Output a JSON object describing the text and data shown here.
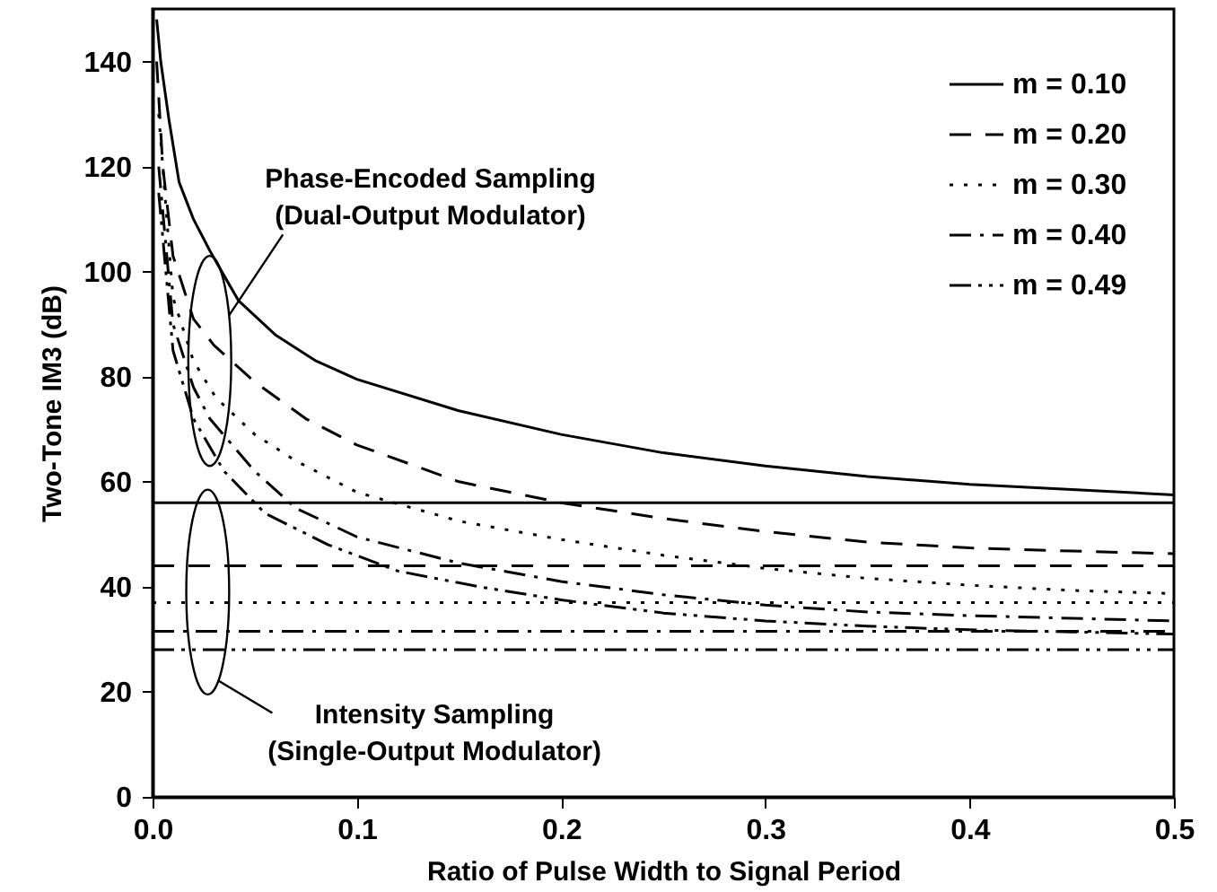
{
  "chart_data": {
    "type": "line",
    "xlabel": "Ratio of Pulse Width to Signal Period",
    "ylabel": "Two-Tone IM3 (dB)",
    "xlim": [
      0,
      0.5
    ],
    "xticks": [
      {
        "value": 0,
        "label": "0.0"
      },
      0.1,
      0.2,
      0.3,
      0.4,
      0.5
    ],
    "ylim": [
      0,
      150
    ],
    "yticks": [
      0,
      20,
      40,
      60,
      80,
      100,
      120,
      140
    ],
    "grid": false,
    "legend": "top right",
    "marker": "none",
    "annotations": [
      "Phase-Encoded Sampling\n(Dual-Output Modulator)",
      "Intensity Sampling\n(Single-Output Modulator)"
    ],
    "series": [
      {
        "name": "m = 0.10",
        "color": "#000000",
        "line_style": "solid",
        "x": [
          0.002,
          0.004,
          0.008,
          0.013,
          0.02,
          0.028,
          0.042,
          0.06,
          0.08,
          0.1,
          0.15,
          0.2,
          0.25,
          0.3,
          0.35,
          0.4,
          0.45,
          0.5
        ],
        "values": [
          148,
          140,
          129,
          117,
          110,
          104,
          94.5,
          88,
          83,
          79.5,
          73.5,
          69,
          65.5,
          63,
          61,
          59.5,
          58.5,
          57.5
        ]
      },
      {
        "name": "m = 0.20",
        "color": "#000000",
        "line_style": "dashed",
        "x": [
          0.002,
          0.005,
          0.01,
          0.02,
          0.03,
          0.05,
          0.075,
          0.1,
          0.15,
          0.2,
          0.25,
          0.3,
          0.35,
          0.4,
          0.45,
          0.5
        ],
        "values": [
          140,
          120,
          103,
          91,
          86,
          79,
          72,
          67,
          60,
          56,
          53,
          50.5,
          48.5,
          47.4,
          46.8,
          46.3
        ]
      },
      {
        "name": "m = 0.30",
        "color": "#000000",
        "line_style": "dotted",
        "x": [
          0.003,
          0.01,
          0.02,
          0.031,
          0.05,
          0.07,
          0.1,
          0.15,
          0.2,
          0.25,
          0.3,
          0.35,
          0.4,
          0.45,
          0.5
        ],
        "values": [
          130,
          95,
          83,
          76,
          69,
          64,
          58,
          52.5,
          49,
          46,
          43.5,
          41.6,
          40.3,
          39.3,
          38.7
        ]
      },
      {
        "name": "m = 0.40",
        "color": "#000000",
        "line_style": "dashdot",
        "x": [
          0.003,
          0.01,
          0.02,
          0.028,
          0.05,
          0.07,
          0.1,
          0.15,
          0.2,
          0.25,
          0.3,
          0.35,
          0.4,
          0.45,
          0.5
        ],
        "values": [
          120,
          90,
          78,
          72,
          62,
          55,
          49.5,
          44.5,
          41,
          38.5,
          36.5,
          35.2,
          34.5,
          34,
          33.5
        ]
      },
      {
        "name": "m = 0.49",
        "color": "#000000",
        "line_style": "dashdotdot",
        "x": [
          0.003,
          0.01,
          0.02,
          0.035,
          0.055,
          0.086,
          0.12,
          0.16,
          0.2,
          0.25,
          0.3,
          0.35,
          0.4,
          0.45,
          0.5
        ],
        "values": [
          115,
          85,
          72,
          62,
          54,
          48,
          43,
          40,
          37.5,
          35,
          33.5,
          32.5,
          31.8,
          31.4,
          31
        ]
      },
      {
        "color": "#000000",
        "line_style": "solid",
        "x": [
          0,
          0.5
        ],
        "values": [
          56,
          56
        ]
      },
      {
        "color": "#000000",
        "line_style": "dashed",
        "x": [
          0,
          0.5
        ],
        "values": [
          44,
          44
        ]
      },
      {
        "color": "#000000",
        "line_style": "dotted",
        "x": [
          0,
          0.5
        ],
        "values": [
          37,
          37
        ]
      },
      {
        "color": "#000000",
        "line_style": "dashdot",
        "x": [
          0,
          0.5
        ],
        "values": [
          31.5,
          31.5
        ]
      },
      {
        "color": "#000000",
        "line_style": "dashdotdot",
        "x": [
          0,
          0.5
        ],
        "values": [
          28,
          28
        ]
      }
    ]
  }
}
